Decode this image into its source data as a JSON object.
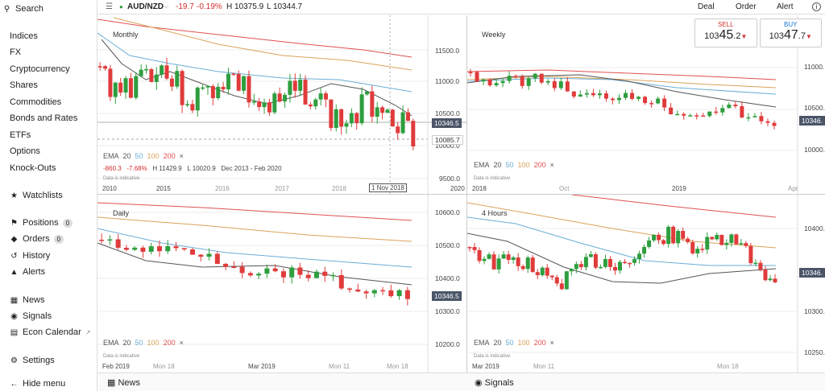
{
  "sidebar": {
    "search": "Search",
    "sections": [
      "Indices",
      "FX",
      "Cryptocurrency",
      "Shares",
      "Commodities",
      "Bonds and Rates",
      "ETFs",
      "Options",
      "Knock-Outs"
    ],
    "watchlists": "Watchlists",
    "positions": "Positions",
    "positions_count": "0",
    "orders": "Orders",
    "orders_count": "0",
    "history": "History",
    "alerts": "Alerts",
    "news": "News",
    "signals": "Signals",
    "econ": "Econ Calendar",
    "settings": "Settings",
    "hide": "Hide menu"
  },
  "topbar": {
    "instrument": "AUD/NZD",
    "change": "-19.7",
    "change_pct": "-0.19%",
    "high": "H 10375.9",
    "low": "L 10344.7",
    "deal": "Deal",
    "order": "Order",
    "alert": "Alert"
  },
  "trade": {
    "sell_label": "SELL",
    "sell_prefix": "103",
    "sell_big": "45",
    "sell_small": ".2",
    "buy_label": "BUY",
    "buy_prefix": "103",
    "buy_big": "47",
    "buy_small": ".7"
  },
  "ema": {
    "label": "EMA",
    "p20": "20",
    "p50": "50",
    "p100": "100",
    "p200": "200",
    "close": "×"
  },
  "note": "Data is indicative",
  "colors": {
    "up": "#2e9e3e",
    "down": "#e03b3b",
    "ema20": "#555555",
    "ema50": "#6aaed6",
    "ema100": "#d9a35a",
    "ema200": "#e05050"
  },
  "panels": {
    "monthly": {
      "title": "Monthly",
      "y_ticks": [
        "11500.0",
        "11000.0",
        "10500.0",
        "10000.0",
        "9500.0"
      ],
      "price_tag": "10346.5",
      "low_tag": "10085.7",
      "x_ticks": [
        "2010",
        "2015",
        "2016",
        "2017",
        "2018",
        "2020"
      ],
      "x_highlight": "1 Nov 2018",
      "summary": {
        "change": "-860.3",
        "pct": "-7.68%",
        "high": "H 11429.9",
        "low": "L 10020.9",
        "range": "Dec 2013 - Feb 2020"
      }
    },
    "weekly": {
      "title": "Weekly",
      "y_ticks": [
        "11000.",
        "10500.",
        "10000."
      ],
      "price_tag": "10346.",
      "x_ticks": [
        "2018",
        "Oct",
        "2019",
        "Apr"
      ]
    },
    "daily": {
      "title": "Daily",
      "y_ticks": [
        "10600.0",
        "10500.0",
        "10400.0",
        "10300.0",
        "10200.0"
      ],
      "price_tag": "10346.5",
      "x_ticks": [
        "Feb 2019",
        "Mon 18",
        "Mar 2019",
        "Mon 11",
        "Mon 18"
      ]
    },
    "four_hours": {
      "title": "4 Hours",
      "y_ticks": [
        "10400.",
        "10300.",
        "10250."
      ],
      "price_tag": "10346.",
      "x_ticks": [
        "Mar 2019",
        "Mon 11",
        "Mon 18"
      ]
    }
  },
  "bottom": {
    "news": "News",
    "signals": "Signals"
  }
}
